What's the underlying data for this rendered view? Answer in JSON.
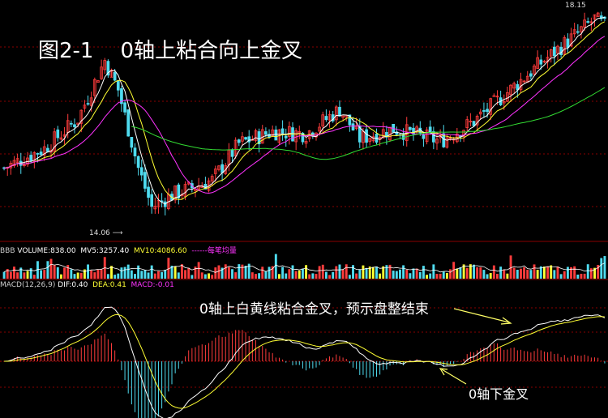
{
  "title": "图2-1    0轴上粘合向上金叉",
  "volume_panel": {
    "code": "BBB",
    "vol_text": "VOLUME:838.00",
    "ma5_text": "MV5:3257.40",
    "ma10_text": "MV10:4086.60",
    "avg_text": "每笔均量"
  },
  "macd_panel": {
    "params": "MACD(12,26,9)",
    "dif_text": "DIF:0.40",
    "dea_text": "DEA:0.41",
    "macd_text": "MACD:-0.01"
  },
  "annotations": {
    "upper": "0轴上白黄线粘合金叉，预示盘整结束",
    "lower": "0轴下金叉"
  },
  "price_labels": {
    "high": "18.15",
    "low": "14.06"
  },
  "colors": {
    "up": "#ff3c3c",
    "down": "#4fdcf0",
    "ma5": "#ffffff",
    "ma10": "#ffff33",
    "ma20": "#ff33ff",
    "ma60": "#33dd33",
    "grid": "#8a0000",
    "volume_ma5": "#ffffff",
    "volume_ma10": "#ffff33",
    "avg_line": "#ff33ff"
  },
  "chart_data": {
    "type": "candlestick",
    "num_bars": 180,
    "price_range": [
      13.6,
      18.3
    ],
    "price_high": 18.15,
    "price_low": 14.06,
    "series": [
      {
        "name": "MV5:3257.40"
      },
      {
        "name": "MV10:4086.60"
      },
      {
        "name": "DIF:0.40"
      },
      {
        "name": "DEA:0.41"
      },
      {
        "name": "MACD:-0.01"
      }
    ],
    "macd_current": {
      "dif": 0.4,
      "dea": 0.41,
      "macd": -0.01
    },
    "volume_current": {
      "volume": 838.0,
      "ma5": 3257.4,
      "ma10": 4086.6
    }
  }
}
